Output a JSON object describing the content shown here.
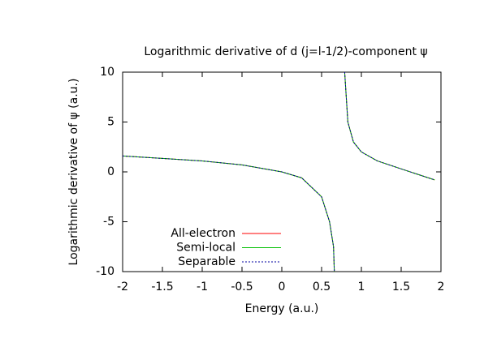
{
  "chart_data": {
    "type": "line",
    "title": "Logarithmic derivative of d (j=l-1/2)-component ψ",
    "x_label": "Energy (a.u.)",
    "y_label": "Logarithmic derivative of ψ (a.u.)",
    "x": [
      -2,
      -1.5,
      -1,
      -0.5,
      0,
      0.25,
      0.5,
      0.6,
      0.65,
      0.66,
      0.72,
      0.79,
      0.83,
      0.9,
      1,
      1.2,
      1.5,
      1.92
    ],
    "series": [
      {
        "name": "All-electron",
        "color": "#ff0000",
        "dash": false,
        "values": [
          1.6,
          1.35,
          1.1,
          0.7,
          0,
          -0.6,
          -2.5,
          -5,
          -7.5,
          -10,
          null,
          10,
          5,
          3,
          2,
          1.1,
          0.3,
          -0.8
        ]
      },
      {
        "name": "Semi-local",
        "color": "#00c000",
        "dash": false,
        "values": [
          1.6,
          1.35,
          1.1,
          0.7,
          0,
          -0.6,
          -2.5,
          -5,
          -7.5,
          -10,
          null,
          10,
          5,
          3,
          2,
          1.1,
          0.3,
          -0.8
        ]
      },
      {
        "name": "Separable",
        "color": "#0000a0",
        "dash": true,
        "values": [
          1.6,
          1.35,
          1.1,
          0.7,
          0,
          -0.6,
          -2.5,
          -5,
          -7.5,
          -10,
          null,
          10,
          5,
          3,
          2,
          1.1,
          0.3,
          -0.8
        ]
      }
    ],
    "xlim": [
      -2,
      2
    ],
    "xticks": [
      -2,
      -1.5,
      -1,
      -0.5,
      0,
      0.5,
      1,
      1.5,
      2
    ],
    "ylim": [
      -10,
      10
    ],
    "yticks": [
      -10,
      -5,
      0,
      5,
      10
    ],
    "grid": false,
    "legend": "lower left"
  }
}
